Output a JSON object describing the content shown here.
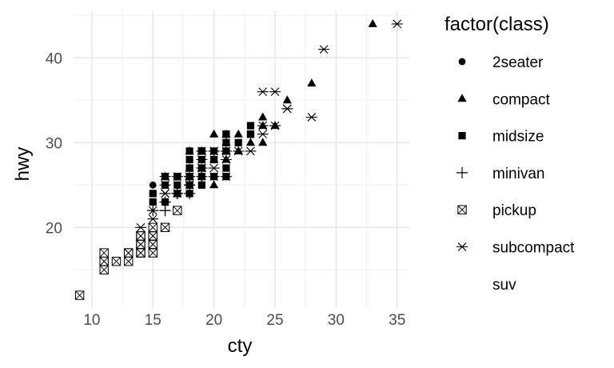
{
  "chart_data": {
    "type": "scatter",
    "title": "",
    "xlabel": "cty",
    "ylabel": "hwy",
    "xlim": [
      8.5,
      36
    ],
    "ylim": [
      10.5,
      45.5
    ],
    "x_ticks": [
      10,
      15,
      20,
      25,
      30,
      35
    ],
    "y_ticks": [
      20,
      30,
      40
    ],
    "grid": true,
    "legend": {
      "title": "factor(class)",
      "placement": "right",
      "entries": [
        {
          "label": "2seater",
          "shape": "circle"
        },
        {
          "label": "compact",
          "shape": "triangle"
        },
        {
          "label": "midsize",
          "shape": "square"
        },
        {
          "label": "minivan",
          "shape": "plus"
        },
        {
          "label": "pickup",
          "shape": "square-cross"
        },
        {
          "label": "subcompact",
          "shape": "asterisk"
        },
        {
          "label": "suv",
          "shape": "none"
        }
      ]
    },
    "series": [
      {
        "name": "2seater",
        "shape": "circle",
        "points": [
          [
            15,
            23
          ],
          [
            15,
            24
          ],
          [
            16,
            26
          ],
          [
            15,
            25
          ],
          [
            15,
            24
          ]
        ]
      },
      {
        "name": "compact",
        "shape": "triangle",
        "points": [
          [
            18,
            29
          ],
          [
            21,
            29
          ],
          [
            20,
            31
          ],
          [
            21,
            30
          ],
          [
            16,
            26
          ],
          [
            18,
            26
          ],
          [
            18,
            27
          ],
          [
            18,
            26
          ],
          [
            20,
            28
          ],
          [
            19,
            27
          ],
          [
            21,
            29
          ],
          [
            22,
            29
          ],
          [
            22,
            31
          ],
          [
            24,
            33
          ],
          [
            24,
            32
          ],
          [
            26,
            35
          ],
          [
            28,
            37
          ],
          [
            33,
            44
          ],
          [
            20,
            28
          ],
          [
            19,
            26
          ],
          [
            20,
            25
          ],
          [
            17,
            24
          ],
          [
            21,
            30
          ],
          [
            23,
            30
          ],
          [
            19,
            29
          ],
          [
            21,
            31
          ],
          [
            25,
            32
          ],
          [
            24,
            30
          ],
          [
            22,
            29
          ],
          [
            21,
            28
          ]
        ]
      },
      {
        "name": "midsize",
        "shape": "square",
        "points": [
          [
            15,
            24
          ],
          [
            17,
            26
          ],
          [
            16,
            26
          ],
          [
            18,
            29
          ],
          [
            19,
            29
          ],
          [
            18,
            28
          ],
          [
            19,
            26
          ],
          [
            17,
            25
          ],
          [
            18,
            27
          ],
          [
            21,
            31
          ],
          [
            19,
            27
          ],
          [
            20,
            28
          ],
          [
            18,
            25
          ],
          [
            17,
            26
          ],
          [
            16,
            25
          ],
          [
            18,
            27
          ],
          [
            19,
            28
          ],
          [
            21,
            30
          ],
          [
            19,
            29
          ],
          [
            20,
            29
          ],
          [
            23,
            31
          ],
          [
            23,
            32
          ],
          [
            21,
            29
          ],
          [
            21,
            31
          ],
          [
            18,
            24
          ],
          [
            17,
            26
          ],
          [
            16,
            23
          ],
          [
            20,
            26
          ],
          [
            18,
            26
          ],
          [
            18,
            25
          ],
          [
            19,
            25
          ],
          [
            21,
            26
          ],
          [
            22,
            30
          ],
          [
            23,
            31
          ],
          [
            21,
            27
          ],
          [
            15,
            23
          ],
          [
            17,
            24
          ],
          [
            18,
            26
          ],
          [
            19,
            29
          ]
        ]
      },
      {
        "name": "minivan",
        "shape": "plus",
        "points": [
          [
            18,
            24
          ],
          [
            17,
            24
          ],
          [
            16,
            22
          ],
          [
            16,
            22
          ],
          [
            17,
            24
          ],
          [
            17,
            24
          ],
          [
            16,
            23
          ],
          [
            15,
            22
          ],
          [
            18,
            25
          ],
          [
            19,
            26
          ],
          [
            16,
            23
          ]
        ]
      },
      {
        "name": "pickup",
        "shape": "square-cross",
        "points": [
          [
            9,
            12
          ],
          [
            11,
            15
          ],
          [
            11,
            16
          ],
          [
            11,
            17
          ],
          [
            12,
            16
          ],
          [
            13,
            17
          ],
          [
            13,
            16
          ],
          [
            14,
            17
          ],
          [
            14,
            18
          ],
          [
            14,
            19
          ],
          [
            15,
            17
          ],
          [
            15,
            18
          ],
          [
            15,
            19
          ],
          [
            15,
            20
          ],
          [
            16,
            20
          ],
          [
            17,
            22
          ],
          [
            14,
            18
          ],
          [
            15,
            19
          ],
          [
            14,
            17
          ],
          [
            13,
            17
          ],
          [
            11,
            16
          ],
          [
            15,
            18
          ],
          [
            14,
            19
          ]
        ]
      },
      {
        "name": "subcompact",
        "shape": "asterisk",
        "points": [
          [
            18,
            26
          ],
          [
            18,
            25
          ],
          [
            17,
            24
          ],
          [
            16,
            24
          ],
          [
            15,
            21
          ],
          [
            14,
            20
          ],
          [
            20,
            29
          ],
          [
            19,
            28
          ],
          [
            20,
            26
          ],
          [
            22,
            29
          ],
          [
            21,
            26
          ],
          [
            24,
            36
          ],
          [
            25,
            36
          ],
          [
            24,
            32
          ],
          [
            26,
            34
          ],
          [
            28,
            33
          ],
          [
            29,
            41
          ],
          [
            35,
            44
          ],
          [
            23,
            29
          ],
          [
            25,
            32
          ],
          [
            26,
            34
          ],
          [
            21,
            29
          ],
          [
            20,
            27
          ],
          [
            19,
            29
          ],
          [
            18,
            25
          ],
          [
            16,
            24
          ],
          [
            15,
            22
          ],
          [
            21,
            28
          ],
          [
            24,
            31
          ],
          [
            18,
            26
          ],
          [
            17,
            26
          ],
          [
            16,
            25
          ],
          [
            19,
            27
          ],
          [
            20,
            29
          ],
          [
            16,
            26
          ]
        ]
      }
    ]
  }
}
